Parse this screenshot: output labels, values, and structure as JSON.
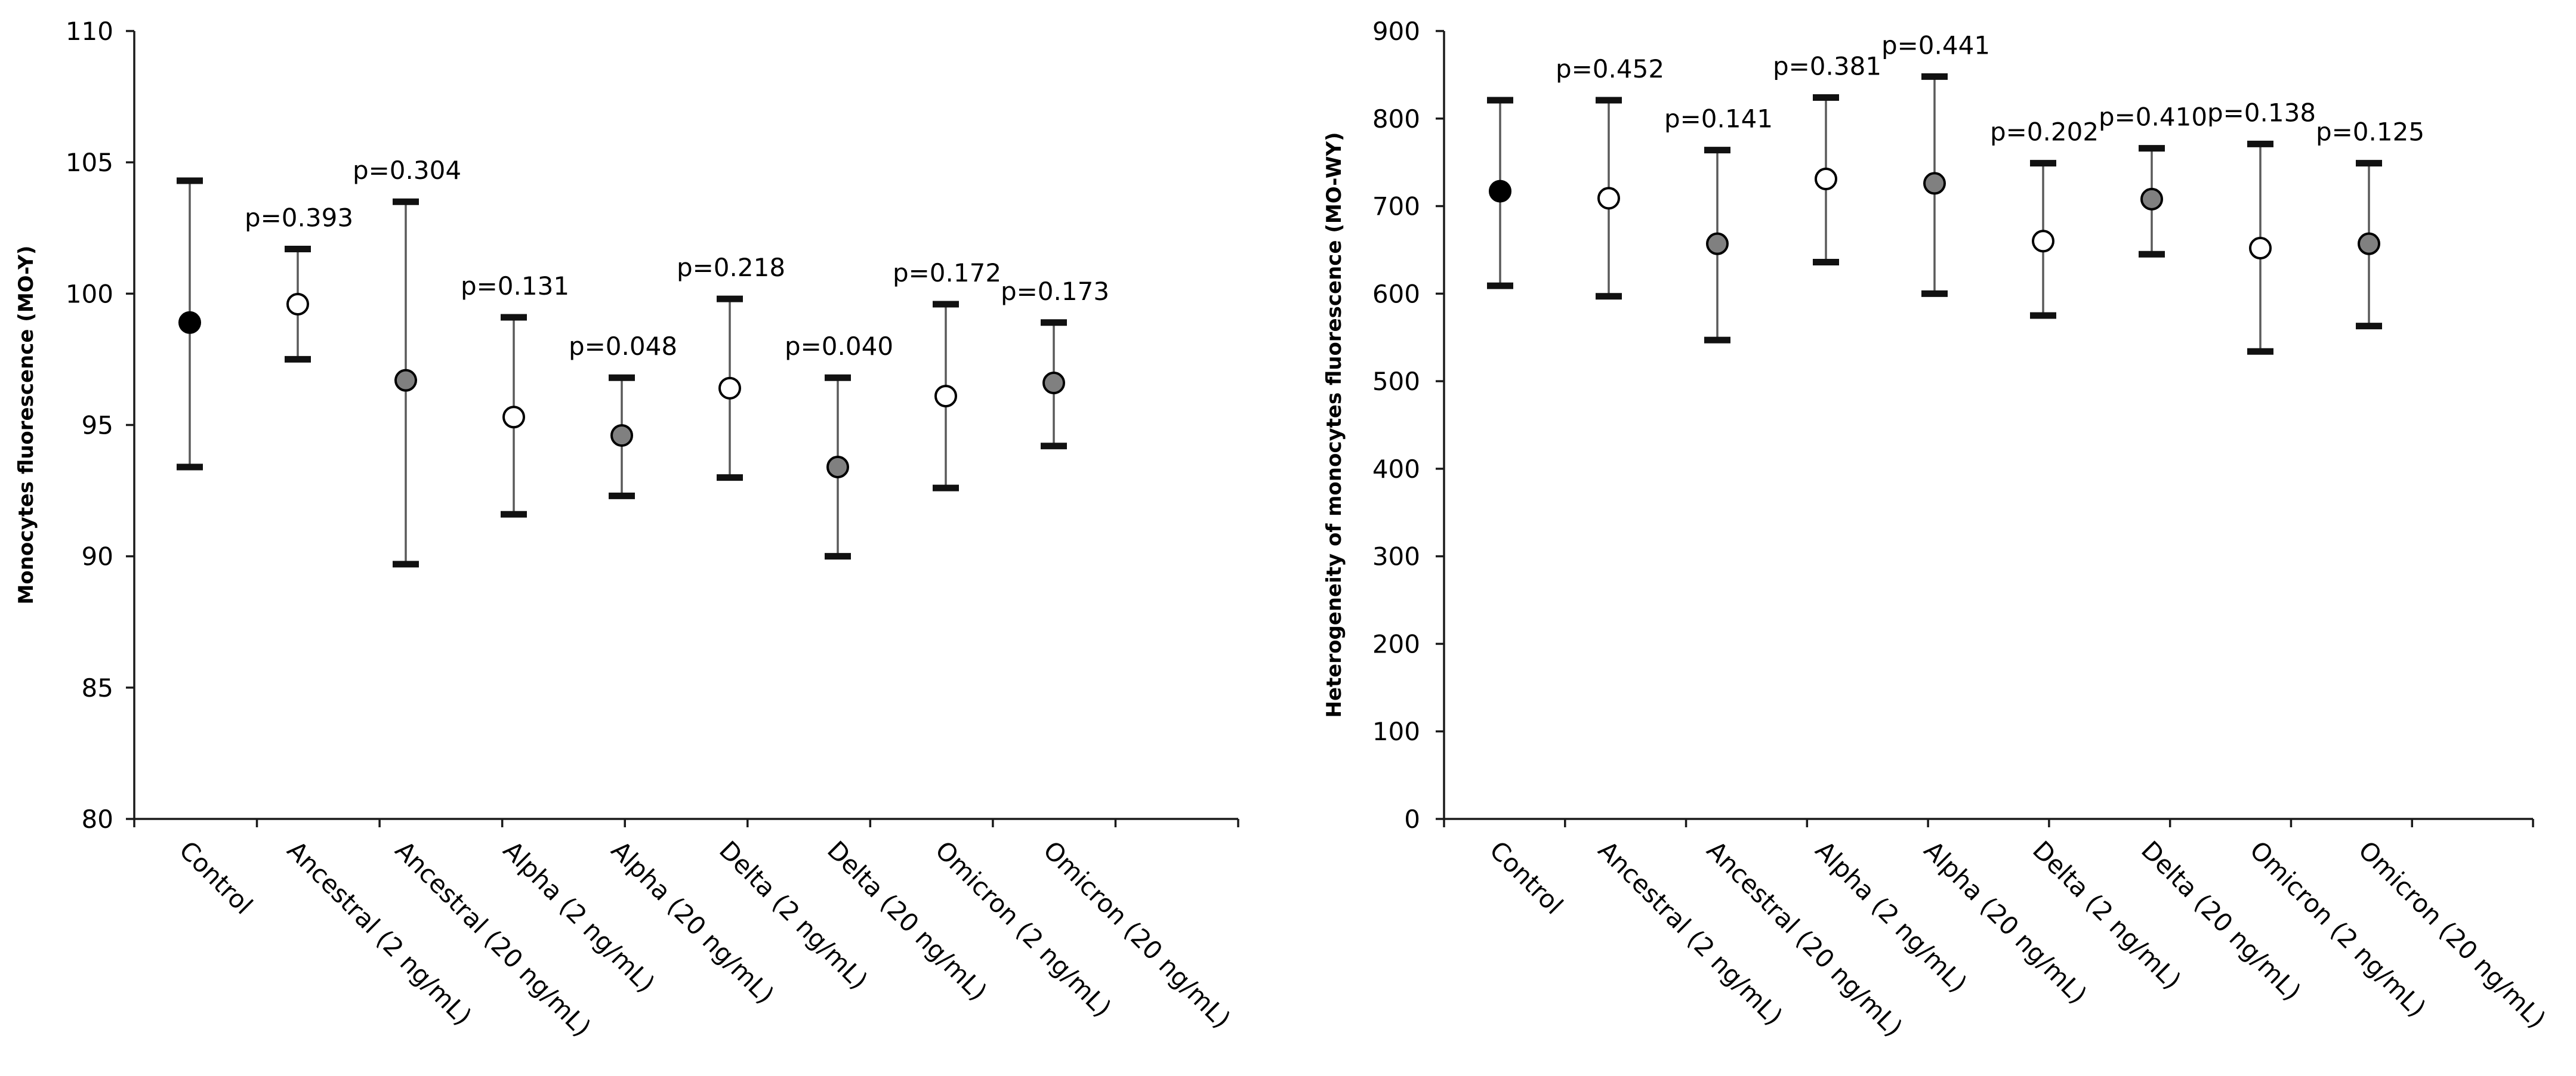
{
  "chart_data": [
    {
      "type": "scatter",
      "subtype": "mean-with-error-bars",
      "ylabel": "Monocytes fluorescence (MO-Y)",
      "xlabel": "",
      "ylim": [
        80,
        110
      ],
      "yticks": [
        80,
        85,
        90,
        95,
        100,
        105,
        110
      ],
      "grid": false,
      "categories": [
        "Control",
        "Ancestral (2 ng/mL)",
        "Ancestral (20 ng/mL)",
        "Alpha (2 ng/mL)",
        "Alpha (20 ng/mL)",
        "Delta (2 ng/mL)",
        "Delta (20 ng/mL)",
        "Omicron (2 ng/mL)",
        "Omicron (20 ng/mL)"
      ],
      "means": [
        98.9,
        99.6,
        96.7,
        95.3,
        94.6,
        96.4,
        93.4,
        96.1,
        96.6
      ],
      "lower": [
        93.4,
        97.5,
        89.7,
        91.6,
        92.3,
        93.0,
        90.0,
        92.6,
        94.2
      ],
      "upper": [
        104.3,
        101.7,
        103.5,
        99.1,
        96.8,
        99.8,
        96.8,
        99.6,
        98.9
      ],
      "marker_fill": [
        "#000000",
        "#ffffff",
        "#808080",
        "#ffffff",
        "#808080",
        "#ffffff",
        "#808080",
        "#ffffff",
        "#808080"
      ],
      "p_values": [
        "",
        "p=0.393",
        "p=0.304",
        "p=0.131",
        "p=0.048",
        "p=0.218",
        "p=0.040",
        "p=0.172",
        "p=0.173"
      ]
    },
    {
      "type": "scatter",
      "subtype": "mean-with-error-bars",
      "ylabel": "Heterogeneity of monocytes fluorescence (MO-WY)",
      "xlabel": "",
      "ylim": [
        0,
        900
      ],
      "yticks": [
        0,
        100,
        200,
        300,
        400,
        500,
        600,
        700,
        800,
        900
      ],
      "grid": false,
      "categories": [
        "Control",
        "Ancestral (2 ng/mL)",
        "Ancestral (20 ng/mL)",
        "Alpha (2 ng/mL)",
        "Alpha (20 ng/mL)",
        "Delta (2 ng/mL)",
        "Delta (20 ng/mL)",
        "Omicron (2 ng/mL)",
        "Omicron (20 ng/mL)"
      ],
      "means": [
        717,
        709,
        657,
        731,
        726,
        660,
        708,
        652,
        657
      ],
      "lower": [
        609,
        597,
        547,
        636,
        600,
        575,
        645,
        534,
        563
      ],
      "upper": [
        821,
        821,
        764,
        824,
        848,
        749,
        766,
        771,
        749
      ],
      "marker_fill": [
        "#000000",
        "#ffffff",
        "#808080",
        "#ffffff",
        "#808080",
        "#ffffff",
        "#808080",
        "#ffffff",
        "#808080"
      ],
      "p_values": [
        "",
        "p=0.452",
        "p=0.141",
        "p=0.381",
        "p=0.441",
        "p=0.202",
        "p=0.410",
        "p=0.138",
        "p=0.125"
      ]
    }
  ]
}
